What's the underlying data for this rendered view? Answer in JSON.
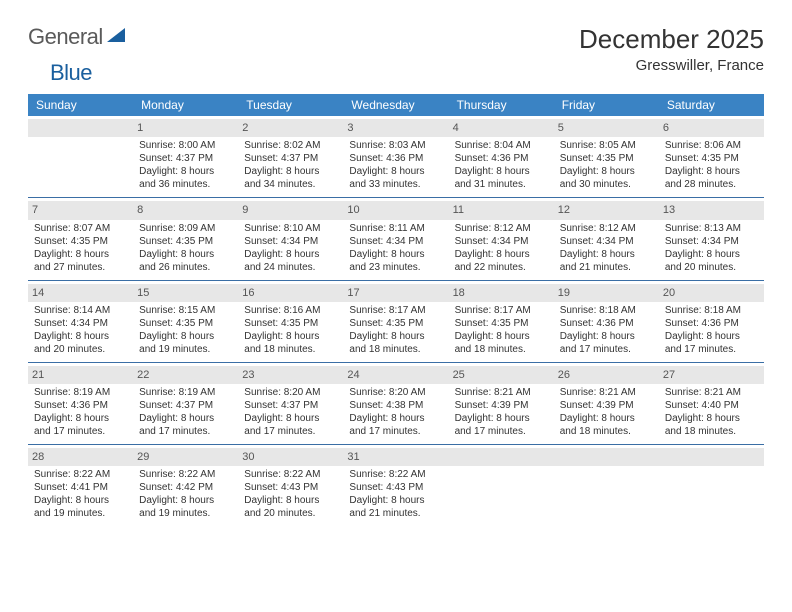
{
  "brand": {
    "word1": "General",
    "word2": "Blue"
  },
  "title": "December 2025",
  "location": "Gresswiller, France",
  "colors": {
    "header_bg": "#3a83c4",
    "header_text": "#ffffff",
    "daynum_bg": "#e7e7e7",
    "row_divider": "#3a6ea5",
    "brand_gray": "#5a5a5a",
    "brand_blue": "#1a5f9e"
  },
  "weekdays": [
    "Sunday",
    "Monday",
    "Tuesday",
    "Wednesday",
    "Thursday",
    "Friday",
    "Saturday"
  ],
  "weeks": [
    [
      null,
      {
        "n": "1",
        "sr": "Sunrise: 8:00 AM",
        "ss": "Sunset: 4:37 PM",
        "dl": "Daylight: 8 hours and 36 minutes."
      },
      {
        "n": "2",
        "sr": "Sunrise: 8:02 AM",
        "ss": "Sunset: 4:37 PM",
        "dl": "Daylight: 8 hours and 34 minutes."
      },
      {
        "n": "3",
        "sr": "Sunrise: 8:03 AM",
        "ss": "Sunset: 4:36 PM",
        "dl": "Daylight: 8 hours and 33 minutes."
      },
      {
        "n": "4",
        "sr": "Sunrise: 8:04 AM",
        "ss": "Sunset: 4:36 PM",
        "dl": "Daylight: 8 hours and 31 minutes."
      },
      {
        "n": "5",
        "sr": "Sunrise: 8:05 AM",
        "ss": "Sunset: 4:35 PM",
        "dl": "Daylight: 8 hours and 30 minutes."
      },
      {
        "n": "6",
        "sr": "Sunrise: 8:06 AM",
        "ss": "Sunset: 4:35 PM",
        "dl": "Daylight: 8 hours and 28 minutes."
      }
    ],
    [
      {
        "n": "7",
        "sr": "Sunrise: 8:07 AM",
        "ss": "Sunset: 4:35 PM",
        "dl": "Daylight: 8 hours and 27 minutes."
      },
      {
        "n": "8",
        "sr": "Sunrise: 8:09 AM",
        "ss": "Sunset: 4:35 PM",
        "dl": "Daylight: 8 hours and 26 minutes."
      },
      {
        "n": "9",
        "sr": "Sunrise: 8:10 AM",
        "ss": "Sunset: 4:34 PM",
        "dl": "Daylight: 8 hours and 24 minutes."
      },
      {
        "n": "10",
        "sr": "Sunrise: 8:11 AM",
        "ss": "Sunset: 4:34 PM",
        "dl": "Daylight: 8 hours and 23 minutes."
      },
      {
        "n": "11",
        "sr": "Sunrise: 8:12 AM",
        "ss": "Sunset: 4:34 PM",
        "dl": "Daylight: 8 hours and 22 minutes."
      },
      {
        "n": "12",
        "sr": "Sunrise: 8:12 AM",
        "ss": "Sunset: 4:34 PM",
        "dl": "Daylight: 8 hours and 21 minutes."
      },
      {
        "n": "13",
        "sr": "Sunrise: 8:13 AM",
        "ss": "Sunset: 4:34 PM",
        "dl": "Daylight: 8 hours and 20 minutes."
      }
    ],
    [
      {
        "n": "14",
        "sr": "Sunrise: 8:14 AM",
        "ss": "Sunset: 4:34 PM",
        "dl": "Daylight: 8 hours and 20 minutes."
      },
      {
        "n": "15",
        "sr": "Sunrise: 8:15 AM",
        "ss": "Sunset: 4:35 PM",
        "dl": "Daylight: 8 hours and 19 minutes."
      },
      {
        "n": "16",
        "sr": "Sunrise: 8:16 AM",
        "ss": "Sunset: 4:35 PM",
        "dl": "Daylight: 8 hours and 18 minutes."
      },
      {
        "n": "17",
        "sr": "Sunrise: 8:17 AM",
        "ss": "Sunset: 4:35 PM",
        "dl": "Daylight: 8 hours and 18 minutes."
      },
      {
        "n": "18",
        "sr": "Sunrise: 8:17 AM",
        "ss": "Sunset: 4:35 PM",
        "dl": "Daylight: 8 hours and 18 minutes."
      },
      {
        "n": "19",
        "sr": "Sunrise: 8:18 AM",
        "ss": "Sunset: 4:36 PM",
        "dl": "Daylight: 8 hours and 17 minutes."
      },
      {
        "n": "20",
        "sr": "Sunrise: 8:18 AM",
        "ss": "Sunset: 4:36 PM",
        "dl": "Daylight: 8 hours and 17 minutes."
      }
    ],
    [
      {
        "n": "21",
        "sr": "Sunrise: 8:19 AM",
        "ss": "Sunset: 4:36 PM",
        "dl": "Daylight: 8 hours and 17 minutes."
      },
      {
        "n": "22",
        "sr": "Sunrise: 8:19 AM",
        "ss": "Sunset: 4:37 PM",
        "dl": "Daylight: 8 hours and 17 minutes."
      },
      {
        "n": "23",
        "sr": "Sunrise: 8:20 AM",
        "ss": "Sunset: 4:37 PM",
        "dl": "Daylight: 8 hours and 17 minutes."
      },
      {
        "n": "24",
        "sr": "Sunrise: 8:20 AM",
        "ss": "Sunset: 4:38 PM",
        "dl": "Daylight: 8 hours and 17 minutes."
      },
      {
        "n": "25",
        "sr": "Sunrise: 8:21 AM",
        "ss": "Sunset: 4:39 PM",
        "dl": "Daylight: 8 hours and 17 minutes."
      },
      {
        "n": "26",
        "sr": "Sunrise: 8:21 AM",
        "ss": "Sunset: 4:39 PM",
        "dl": "Daylight: 8 hours and 18 minutes."
      },
      {
        "n": "27",
        "sr": "Sunrise: 8:21 AM",
        "ss": "Sunset: 4:40 PM",
        "dl": "Daylight: 8 hours and 18 minutes."
      }
    ],
    [
      {
        "n": "28",
        "sr": "Sunrise: 8:22 AM",
        "ss": "Sunset: 4:41 PM",
        "dl": "Daylight: 8 hours and 19 minutes."
      },
      {
        "n": "29",
        "sr": "Sunrise: 8:22 AM",
        "ss": "Sunset: 4:42 PM",
        "dl": "Daylight: 8 hours and 19 minutes."
      },
      {
        "n": "30",
        "sr": "Sunrise: 8:22 AM",
        "ss": "Sunset: 4:43 PM",
        "dl": "Daylight: 8 hours and 20 minutes."
      },
      {
        "n": "31",
        "sr": "Sunrise: 8:22 AM",
        "ss": "Sunset: 4:43 PM",
        "dl": "Daylight: 8 hours and 21 minutes."
      },
      null,
      null,
      null
    ]
  ]
}
